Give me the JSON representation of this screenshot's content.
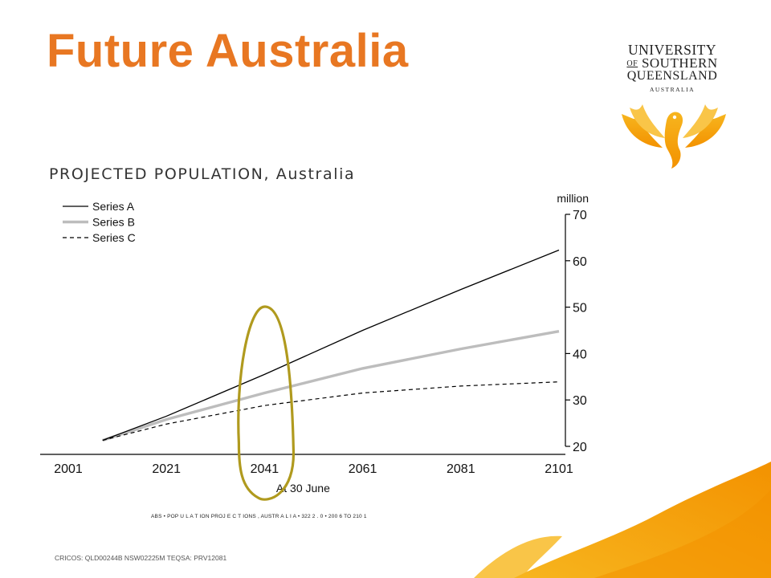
{
  "slide": {
    "title": "Future Australia",
    "footer": "CRICOS: QLD00244B  NSW02225M   TEQSA: PRV12081",
    "source": "ABS • POP U L A T ION PROJ E C T IONS , AUSTR A L I A • 322 2 . 0 • 200 6 TO 210 1"
  },
  "logo": {
    "line1": "UNIVERSITY",
    "line2_of": "OF",
    "line2": "SOUTHERN",
    "line3": "QUEENSLAND",
    "line4": "AUSTRALIA"
  },
  "colors": {
    "title": "#e87722",
    "accent_gold": "#f7b51e",
    "accent_orange": "#f39200",
    "highlight_ellipse": "#b09a1e",
    "series_a": "#000000",
    "series_b": "#bdbdbd",
    "series_c": "#000000"
  },
  "chart_data": {
    "type": "line",
    "title": "PROJECTED POPULATION, Australia",
    "xlabel": "At 30 June",
    "ylabel": "million",
    "xlim": [
      2001,
      2101
    ],
    "ylim": [
      20,
      70
    ],
    "x_ticks": [
      2001,
      2021,
      2041,
      2061,
      2081,
      2101
    ],
    "y_ticks": [
      20,
      30,
      40,
      50,
      60,
      70
    ],
    "y_axis_side": "right",
    "grid": false,
    "legend_position": "top-left",
    "highlight": {
      "x": 2041,
      "note": "circled"
    },
    "series": [
      {
        "name": "Series A",
        "style": "solid-thin",
        "x": [
          2008,
          2021,
          2041,
          2061,
          2081,
          2101
        ],
        "values": [
          21.3,
          26.5,
          35.5,
          45.0,
          53.8,
          62.3
        ]
      },
      {
        "name": "Series B",
        "style": "solid-thick-grey",
        "x": [
          2008,
          2021,
          2041,
          2061,
          2081,
          2101
        ],
        "values": [
          21.3,
          25.8,
          31.5,
          36.8,
          41.0,
          44.8
        ]
      },
      {
        "name": "Series C",
        "style": "dashed",
        "x": [
          2008,
          2021,
          2041,
          2061,
          2081,
          2101
        ],
        "values": [
          21.3,
          24.8,
          28.8,
          31.5,
          33.0,
          33.9
        ]
      }
    ]
  }
}
